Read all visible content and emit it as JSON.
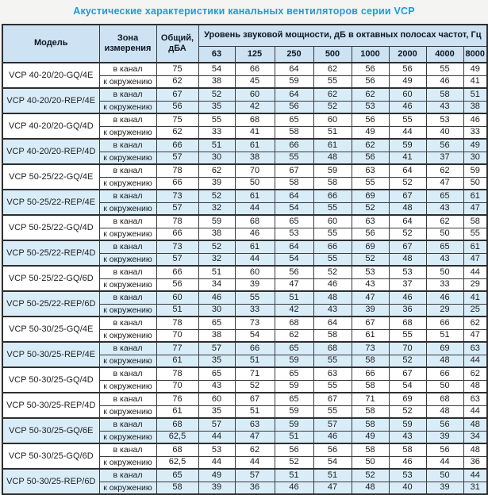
{
  "title": "Акустические характеристики канальных вентиляторов  серии VCP",
  "colors": {
    "title_blue": "#1b9cd8",
    "header_bg": "#cde2f2",
    "band_blue": "#d9edf9",
    "border": "#3b3b3b"
  },
  "table": {
    "headers": {
      "model": "Модель",
      "zone": "Зона измерения",
      "total": "Общий, дБА",
      "span": "Уровень звуковой мощности, дБ в октавных полосах частот, Гц",
      "freqs": [
        "63",
        "125",
        "250",
        "500",
        "1000",
        "2000",
        "4000",
        "8000"
      ]
    },
    "zone_labels": {
      "in_duct": "в канал",
      "to_surroundings": "к окружению"
    },
    "rows": [
      {
        "model": "VCP 40-20/20-GQ/4E",
        "shaded": false,
        "in": {
          "total": "75",
          "levels": [
            54,
            66,
            64,
            62,
            56,
            56,
            55,
            49
          ]
        },
        "out": {
          "total": "62",
          "levels": [
            38,
            45,
            59,
            55,
            56,
            49,
            46,
            41
          ]
        }
      },
      {
        "model": "VCP 40-20/20-REP/4E",
        "shaded": true,
        "in": {
          "total": "67",
          "levels": [
            52,
            60,
            64,
            62,
            62,
            60,
            58,
            51
          ]
        },
        "out": {
          "total": "56",
          "levels": [
            35,
            42,
            56,
            52,
            53,
            46,
            43,
            38
          ]
        }
      },
      {
        "model": "VCP 40-20/20-GQ/4D",
        "shaded": false,
        "in": {
          "total": "75",
          "levels": [
            55,
            68,
            65,
            60,
            56,
            55,
            53,
            46
          ]
        },
        "out": {
          "total": "62",
          "levels": [
            33,
            41,
            58,
            51,
            49,
            44,
            40,
            33
          ]
        }
      },
      {
        "model": "VCP 40-20/20-REP/4D",
        "shaded": true,
        "in": {
          "total": "66",
          "levels": [
            51,
            61,
            66,
            61,
            62,
            59,
            56,
            49
          ]
        },
        "out": {
          "total": "57",
          "levels": [
            30,
            38,
            55,
            48,
            56,
            41,
            37,
            30
          ]
        }
      },
      {
        "model": "VCP 50-25/22-GQ/4E",
        "shaded": false,
        "in": {
          "total": "78",
          "levels": [
            62,
            70,
            67,
            59,
            63,
            64,
            62,
            59
          ]
        },
        "out": {
          "total": "66",
          "levels": [
            39,
            50,
            58,
            58,
            55,
            52,
            47,
            50
          ]
        }
      },
      {
        "model": "VCP 50-25/22-REP/4E",
        "shaded": true,
        "in": {
          "total": "73",
          "levels": [
            52,
            61,
            64,
            66,
            69,
            67,
            65,
            61
          ]
        },
        "out": {
          "total": "57",
          "levels": [
            32,
            44,
            54,
            55,
            52,
            48,
            43,
            47
          ]
        }
      },
      {
        "model": "VCP 50-25/22-GQ/4D",
        "shaded": false,
        "in": {
          "total": "78",
          "levels": [
            59,
            68,
            65,
            60,
            63,
            64,
            62,
            58
          ]
        },
        "out": {
          "total": "66",
          "levels": [
            38,
            46,
            53,
            55,
            56,
            52,
            50,
            55
          ]
        }
      },
      {
        "model": "VCP 50-25/22-REP/4D",
        "shaded": true,
        "in": {
          "total": "73",
          "levels": [
            52,
            61,
            64,
            66,
            69,
            67,
            65,
            61
          ]
        },
        "out": {
          "total": "57",
          "levels": [
            32,
            44,
            54,
            55,
            52,
            48,
            43,
            47
          ]
        }
      },
      {
        "model": "VCP 50-25/22-GQ/6D",
        "shaded": false,
        "in": {
          "total": "66",
          "levels": [
            51,
            60,
            56,
            52,
            53,
            53,
            50,
            44
          ]
        },
        "out": {
          "total": "56",
          "levels": [
            34,
            39,
            47,
            46,
            43,
            37,
            33,
            29
          ]
        }
      },
      {
        "model": "VCP 50-25/22-REP/6D",
        "shaded": true,
        "in": {
          "total": "60",
          "levels": [
            46,
            55,
            51,
            48,
            47,
            46,
            46,
            41
          ]
        },
        "out": {
          "total": "51",
          "levels": [
            30,
            33,
            42,
            43,
            39,
            36,
            29,
            25
          ]
        }
      },
      {
        "model": "VCP 50-30/25-GQ/4E",
        "shaded": false,
        "in": {
          "total": "78",
          "levels": [
            65,
            73,
            68,
            64,
            67,
            68,
            66,
            62
          ]
        },
        "out": {
          "total": "70",
          "levels": [
            38,
            54,
            62,
            58,
            61,
            55,
            51,
            47
          ]
        }
      },
      {
        "model": "VCP 50-30/25-REP/4E",
        "shaded": true,
        "in": {
          "total": "77",
          "levels": [
            57,
            66,
            65,
            68,
            73,
            70,
            69,
            63
          ]
        },
        "out": {
          "total": "61",
          "levels": [
            35,
            51,
            59,
            55,
            58,
            52,
            48,
            44
          ]
        }
      },
      {
        "model": "VCP 50-30/25-GQ/4D",
        "shaded": false,
        "in": {
          "total": "78",
          "levels": [
            65,
            71,
            65,
            63,
            66,
            67,
            66,
            62
          ]
        },
        "out": {
          "total": "70",
          "levels": [
            43,
            52,
            59,
            55,
            58,
            54,
            50,
            48
          ]
        }
      },
      {
        "model": "VCP 50-30/25-REP/4D",
        "shaded": false,
        "in": {
          "total": "76",
          "levels": [
            60,
            67,
            65,
            67,
            71,
            69,
            68,
            63
          ]
        },
        "out": {
          "total": "61",
          "levels": [
            35,
            51,
            59,
            55,
            58,
            52,
            48,
            44
          ]
        }
      },
      {
        "model": "VCP 50-30/25-GQ/6E",
        "shaded": true,
        "in": {
          "total": "68",
          "levels": [
            57,
            63,
            59,
            57,
            58,
            59,
            56,
            48
          ]
        },
        "out": {
          "total": "62,5",
          "levels": [
            44,
            47,
            51,
            46,
            49,
            43,
            39,
            34
          ]
        }
      },
      {
        "model": "VCP 50-30/25-GQ/6D",
        "shaded": false,
        "in": {
          "total": "68",
          "levels": [
            53,
            62,
            56,
            56,
            58,
            58,
            56,
            48
          ]
        },
        "out": {
          "total": "62,5",
          "levels": [
            44,
            44,
            52,
            54,
            50,
            46,
            44,
            36
          ]
        }
      },
      {
        "model": "VCP 50-30/25-REP/6D",
        "shaded": true,
        "in": {
          "total": "65",
          "levels": [
            49,
            57,
            51,
            51,
            52,
            53,
            50,
            44
          ]
        },
        "out": {
          "total": "58",
          "levels": [
            39,
            36,
            46,
            47,
            48,
            40,
            39,
            31
          ]
        }
      }
    ]
  }
}
